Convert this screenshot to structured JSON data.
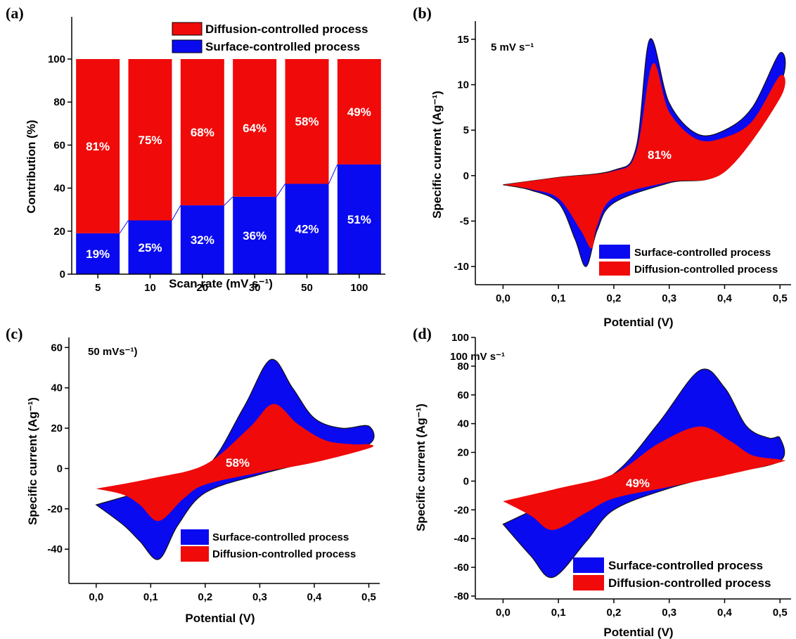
{
  "colors": {
    "surface": "#0a0af0",
    "diffusion": "#f00a0a",
    "axis": "#000000"
  },
  "chart_data": [
    {
      "panel": "(a)",
      "type": "bar",
      "stacked": true,
      "xlabel": "Scan rate (mV s⁻¹)",
      "ylabel": "Contribution (%)",
      "ylim": [
        0,
        100
      ],
      "yticks": [
        "0",
        "20",
        "40",
        "60",
        "80",
        "100"
      ],
      "categories": [
        "5",
        "10",
        "20",
        "30",
        "50",
        "100"
      ],
      "series": [
        {
          "name": "Surface-controlled process",
          "values": [
            19,
            25,
            32,
            36,
            42,
            51
          ],
          "labels": [
            "19%",
            "25%",
            "32%",
            "36%",
            "42%",
            "51%"
          ]
        },
        {
          "name": "Diffusion-controlled process",
          "values": [
            81,
            75,
            68,
            64,
            58,
            49
          ],
          "labels": [
            "81%",
            "75%",
            "68%",
            "64%",
            "58%",
            "49%"
          ]
        }
      ],
      "legend": "top"
    },
    {
      "panel": "(b)",
      "type": "area",
      "annotation": "5 mV s⁻¹",
      "center_label": "81%",
      "xlabel": "Potential (V)",
      "ylabel": "Specific current (Ag⁻¹)",
      "xlim": [
        -0.05,
        0.52
      ],
      "ylim": [
        -12,
        17
      ],
      "xticks": [
        "0,0",
        "0,1",
        "0,2",
        "0,3",
        "0,4",
        "0,5"
      ],
      "yticks": [
        "-10",
        "-5",
        "0",
        "5",
        "10",
        "15"
      ],
      "legend_entries": [
        "Surface-controlled process",
        "Diffusion-controlled process"
      ],
      "legend": "bottom-right",
      "surface_loop": [
        [
          0.0,
          -1.0
        ],
        [
          0.1,
          -0.2
        ],
        [
          0.2,
          0.6
        ],
        [
          0.24,
          3.0
        ],
        [
          0.265,
          15.0
        ],
        [
          0.3,
          8.0
        ],
        [
          0.35,
          4.6
        ],
        [
          0.4,
          5.0
        ],
        [
          0.45,
          7.5
        ],
        [
          0.5,
          13.5
        ],
        [
          0.5,
          10.0
        ],
        [
          0.4,
          0.6
        ],
        [
          0.3,
          -0.8
        ],
        [
          0.2,
          -3.0
        ],
        [
          0.17,
          -6.0
        ],
        [
          0.15,
          -10.0
        ],
        [
          0.13,
          -7.0
        ],
        [
          0.1,
          -3.0
        ],
        [
          0.05,
          -1.6
        ],
        [
          0.0,
          -1.0
        ]
      ],
      "diffusion_loop": [
        [
          0.0,
          -1.0
        ],
        [
          0.1,
          -0.2
        ],
        [
          0.2,
          0.5
        ],
        [
          0.24,
          2.5
        ],
        [
          0.27,
          12.3
        ],
        [
          0.3,
          7.0
        ],
        [
          0.35,
          4.0
        ],
        [
          0.4,
          4.2
        ],
        [
          0.45,
          6.0
        ],
        [
          0.5,
          11.0
        ],
        [
          0.5,
          8.5
        ],
        [
          0.4,
          0.4
        ],
        [
          0.3,
          -0.7
        ],
        [
          0.2,
          -2.4
        ],
        [
          0.17,
          -5.5
        ],
        [
          0.16,
          -8.0
        ],
        [
          0.14,
          -6.0
        ],
        [
          0.1,
          -2.5
        ],
        [
          0.05,
          -1.5
        ],
        [
          0.0,
          -1.0
        ]
      ]
    },
    {
      "panel": "(c)",
      "type": "area",
      "annotation": "50 mVs⁻¹)",
      "center_label": "58%",
      "xlabel": "Potential (V)",
      "ylabel": "Specific current (Ag⁻¹)",
      "xlim": [
        -0.05,
        0.52
      ],
      "ylim": [
        -57,
        65
      ],
      "xticks": [
        "0,0",
        "0,1",
        "0,2",
        "0,3",
        "0,4",
        "0,5"
      ],
      "yticks": [
        "-40",
        "-20",
        "0",
        "20",
        "40",
        "60"
      ],
      "legend_entries": [
        "Surface-controlled process",
        "Diffusion-controlled process"
      ],
      "legend": "bottom-right",
      "surface_loop": [
        [
          0.0,
          -18
        ],
        [
          0.1,
          -10
        ],
        [
          0.2,
          0
        ],
        [
          0.27,
          30
        ],
        [
          0.32,
          54
        ],
        [
          0.36,
          40
        ],
        [
          0.4,
          25
        ],
        [
          0.45,
          20
        ],
        [
          0.5,
          21
        ],
        [
          0.5,
          12
        ],
        [
          0.4,
          4
        ],
        [
          0.3,
          -3
        ],
        [
          0.2,
          -12
        ],
        [
          0.15,
          -28
        ],
        [
          0.115,
          -45
        ],
        [
          0.08,
          -36
        ],
        [
          0.05,
          -28
        ],
        [
          0.0,
          -18
        ]
      ],
      "diffusion_loop": [
        [
          0.0,
          -10
        ],
        [
          0.1,
          -5
        ],
        [
          0.2,
          2
        ],
        [
          0.28,
          20
        ],
        [
          0.325,
          32
        ],
        [
          0.37,
          22
        ],
        [
          0.42,
          14
        ],
        [
          0.47,
          12
        ],
        [
          0.5,
          12
        ],
        [
          0.5,
          10
        ],
        [
          0.4,
          3
        ],
        [
          0.3,
          -2
        ],
        [
          0.2,
          -8
        ],
        [
          0.16,
          -15
        ],
        [
          0.115,
          -26
        ],
        [
          0.08,
          -18
        ],
        [
          0.05,
          -13
        ],
        [
          0.0,
          -10
        ]
      ]
    },
    {
      "panel": "(d)",
      "type": "area",
      "annotation": "100 mV s⁻¹",
      "center_label": "49%",
      "xlabel": "Potential (V)",
      "ylabel": "Specific current (Ag⁻¹)",
      "xlim": [
        -0.05,
        0.52
      ],
      "ylim": [
        -82,
        100
      ],
      "xticks": [
        "0,0",
        "0,1",
        "0,2",
        "0,3",
        "0,4",
        "0,5"
      ],
      "yticks": [
        "-80",
        "-60",
        "-40",
        "-20",
        "0",
        "20",
        "40",
        "60",
        "80",
        "100"
      ],
      "legend_entries": [
        "Surface-controlled process",
        "Diffusion-controlled process"
      ],
      "legend": "bottom-right",
      "surface_loop": [
        [
          0.0,
          -30
        ],
        [
          0.1,
          -12
        ],
        [
          0.2,
          5
        ],
        [
          0.28,
          40
        ],
        [
          0.355,
          77
        ],
        [
          0.4,
          65
        ],
        [
          0.44,
          38
        ],
        [
          0.48,
          30
        ],
        [
          0.5,
          30
        ],
        [
          0.5,
          14
        ],
        [
          0.4,
          5
        ],
        [
          0.3,
          -5
        ],
        [
          0.2,
          -20
        ],
        [
          0.15,
          -42
        ],
        [
          0.09,
          -67
        ],
        [
          0.05,
          -52
        ],
        [
          0.0,
          -30
        ]
      ],
      "diffusion_loop": [
        [
          0.0,
          -14
        ],
        [
          0.1,
          -5
        ],
        [
          0.2,
          5
        ],
        [
          0.28,
          26
        ],
        [
          0.355,
          38
        ],
        [
          0.41,
          28
        ],
        [
          0.45,
          18
        ],
        [
          0.5,
          15
        ],
        [
          0.5,
          13
        ],
        [
          0.4,
          4
        ],
        [
          0.3,
          -4
        ],
        [
          0.2,
          -12
        ],
        [
          0.15,
          -22
        ],
        [
          0.09,
          -34
        ],
        [
          0.05,
          -24
        ],
        [
          0.0,
          -14
        ]
      ]
    }
  ]
}
